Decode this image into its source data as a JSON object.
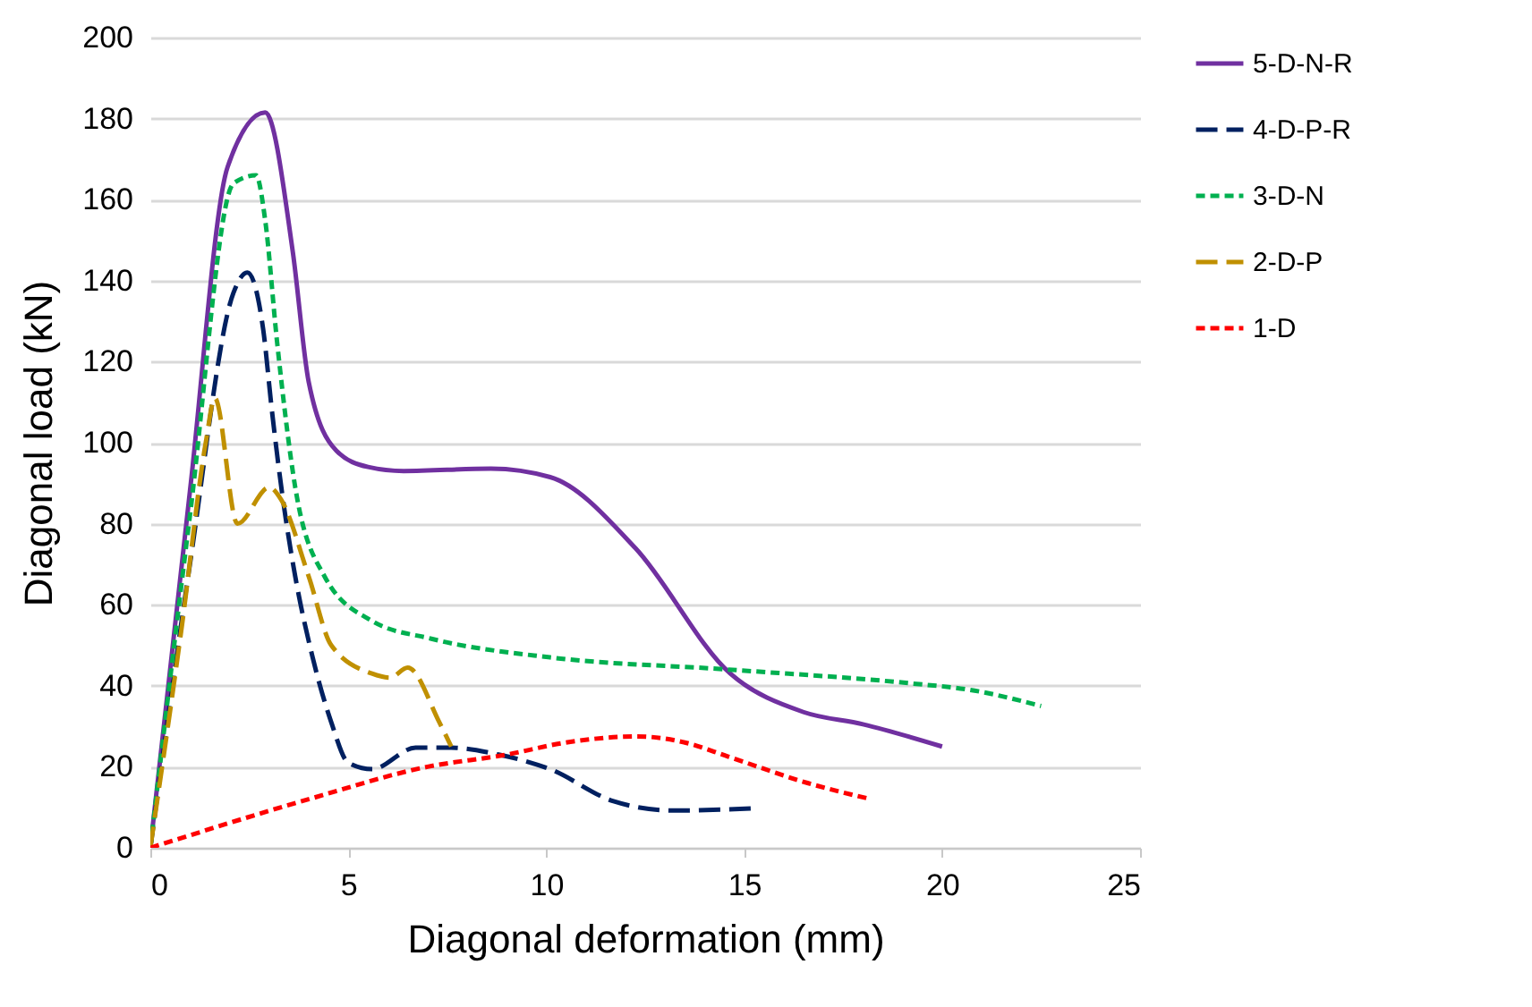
{
  "chart_data": {
    "type": "line",
    "xlabel": "Diagonal deformation (mm)",
    "ylabel": "Diagonal load (kN)",
    "xlim": [
      0,
      25
    ],
    "xticks": [
      0,
      5,
      10,
      15,
      20,
      25
    ],
    "ylim": [
      0,
      200
    ],
    "yticks": [
      0,
      20,
      40,
      60,
      80,
      100,
      120,
      140,
      160,
      180,
      200
    ],
    "grid": "y",
    "legend": "right",
    "series": [
      {
        "name": "5-D-N-R",
        "color": "#7030a0",
        "line_style": "solid",
        "x": [
          0,
          1,
          1.95,
          2.9,
          3.6,
          4.0,
          4.7,
          5.5,
          6.4,
          8.6,
          10.1,
          12.25,
          14.65,
          16.5,
          18,
          20
        ],
        "values": [
          0,
          88,
          168,
          181.5,
          147,
          115,
          98,
          94,
          93,
          93.6,
          91.5,
          74,
          43,
          33.5,
          30.5,
          25
        ]
      },
      {
        "name": "4-D-P-R",
        "color": "#002060",
        "line_style": "dashed",
        "x": [
          0,
          1,
          2.1,
          2.45,
          2.85,
          3.07,
          3.35,
          3.66,
          4.1,
          4.57,
          5.0,
          5.6,
          6.7,
          7.6,
          8.8,
          10.1,
          11.7,
          13.2,
          15.2
        ],
        "values": [
          0,
          70,
          137,
          142,
          128,
          108,
          86,
          67,
          47,
          31,
          21,
          19.4,
          24.7,
          24.7,
          23,
          19.4,
          11.5,
          9.2,
          9.7
        ]
      },
      {
        "name": "3-D-N",
        "color": "#00b050",
        "line_style": "dotted",
        "x": [
          0,
          1,
          2.1,
          2.67,
          2.9,
          3.2,
          3.66,
          4.4,
          5.6,
          7.1,
          10.1,
          14.6,
          19.2,
          20.7,
          22.5
        ],
        "values": [
          0,
          82,
          164,
          166,
          155,
          125,
          89,
          67,
          56,
          51.6,
          47,
          44,
          40.6,
          39,
          35
        ]
      },
      {
        "name": "2-D-P",
        "color": "#c09000",
        "line_style": "dashed",
        "x": [
          0,
          0.8,
          1.4,
          1.63,
          2.2,
          3.0,
          3.3,
          4.0,
          4.57,
          5.6,
          6.06,
          6.5,
          7.3,
          7.6
        ],
        "values": [
          0,
          55,
          100,
          111,
          80,
          89,
          86,
          67,
          50,
          43,
          42,
          44.5,
          31,
          25
        ]
      },
      {
        "name": "1-D",
        "color": "#ff0000",
        "line_style": "dotted",
        "x": [
          0,
          4,
          7,
          9,
          10.5,
          12.3,
          13.5,
          14.6,
          16.6,
          18.2
        ],
        "values": [
          0,
          12,
          20,
          23,
          26,
          27.5,
          26,
          22.5,
          16,
          12
        ]
      }
    ]
  }
}
